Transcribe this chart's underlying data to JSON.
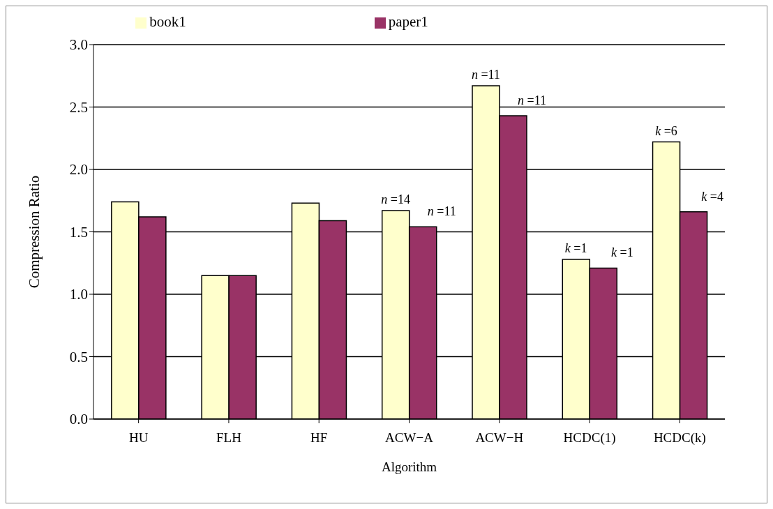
{
  "chart_data": {
    "type": "bar",
    "xlabel": "Algorithm",
    "ylabel": "Compression Ratio",
    "categories": [
      "HU",
      "FLH",
      "HF",
      "ACW−A",
      "ACW−H",
      "HCDC(1)",
      "HCDC(k)"
    ],
    "series": [
      {
        "name": "book1",
        "color": "#ffffcc",
        "values": [
          1.74,
          1.15,
          1.73,
          1.67,
          2.67,
          1.28,
          2.22
        ]
      },
      {
        "name": "paper1",
        "color": "#993366",
        "values": [
          1.62,
          1.15,
          1.59,
          1.54,
          2.43,
          1.21,
          1.66
        ]
      }
    ],
    "annotations": [
      {
        "text": "n =14",
        "x": "ACW−A",
        "y": 1.67
      },
      {
        "text": "n =11",
        "x": "ACW−A",
        "y": 1.54
      },
      {
        "text": "n =11",
        "x": "ACW−H",
        "y": 2.67
      },
      {
        "text": "n =11",
        "x": "ACW−H",
        "y": 2.43
      },
      {
        "text": "k =1",
        "x": "HCDC(1)",
        "y": 1.28
      },
      {
        "text": "k =1",
        "x": "HCDC(1)",
        "y": 1.21
      },
      {
        "text": "k =6",
        "x": "HCDC(k)",
        "y": 2.22
      },
      {
        "text": "k =4",
        "x": "HCDC(k)",
        "y": 1.66
      }
    ],
    "ylim": [
      0,
      3
    ],
    "yticks": [
      {
        "value": 0,
        "label": "0.0"
      },
      0.5,
      {
        "value": 1,
        "label": "1.0"
      },
      1.5,
      {
        "value": 2,
        "label": "2.0"
      },
      2.5,
      {
        "value": 3,
        "label": "3.0"
      }
    ],
    "grid": "y",
    "legend": "top"
  }
}
